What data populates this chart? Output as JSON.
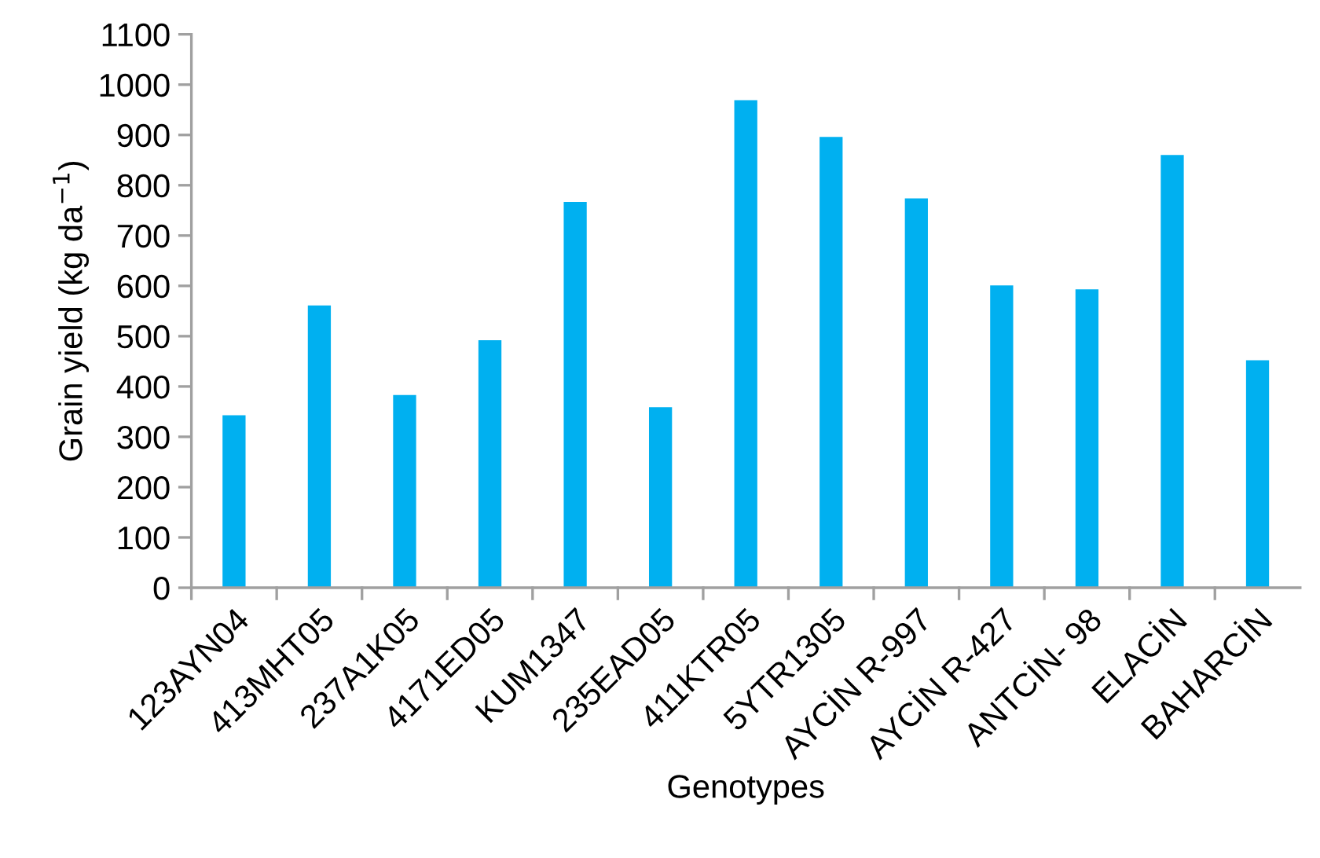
{
  "chart_data": {
    "type": "bar",
    "categories": [
      "123AYN04",
      "413MHT05",
      "237A1K05",
      "4171ED05",
      "KUM1347",
      "235EAD05",
      "411KTR05",
      "5YTR1305",
      "AYCİN R-997",
      "AYCİN R-427",
      "ANTCİN- 98",
      "ELACİN",
      "BAHARCİN"
    ],
    "values": [
      343,
      561,
      383,
      492,
      767,
      359,
      969,
      896,
      774,
      601,
      593,
      860,
      452
    ],
    "color": "#00b0f0",
    "xlabel": "Genotypes",
    "ylabel": "Grain yield (kg da$^{−1}$)",
    "ylim": [
      0,
      1100
    ],
    "yticks": [
      0,
      100,
      200,
      300,
      400,
      500,
      600,
      700,
      800,
      900,
      1000,
      1100
    ],
    "grid": false,
    "legend": false
  }
}
